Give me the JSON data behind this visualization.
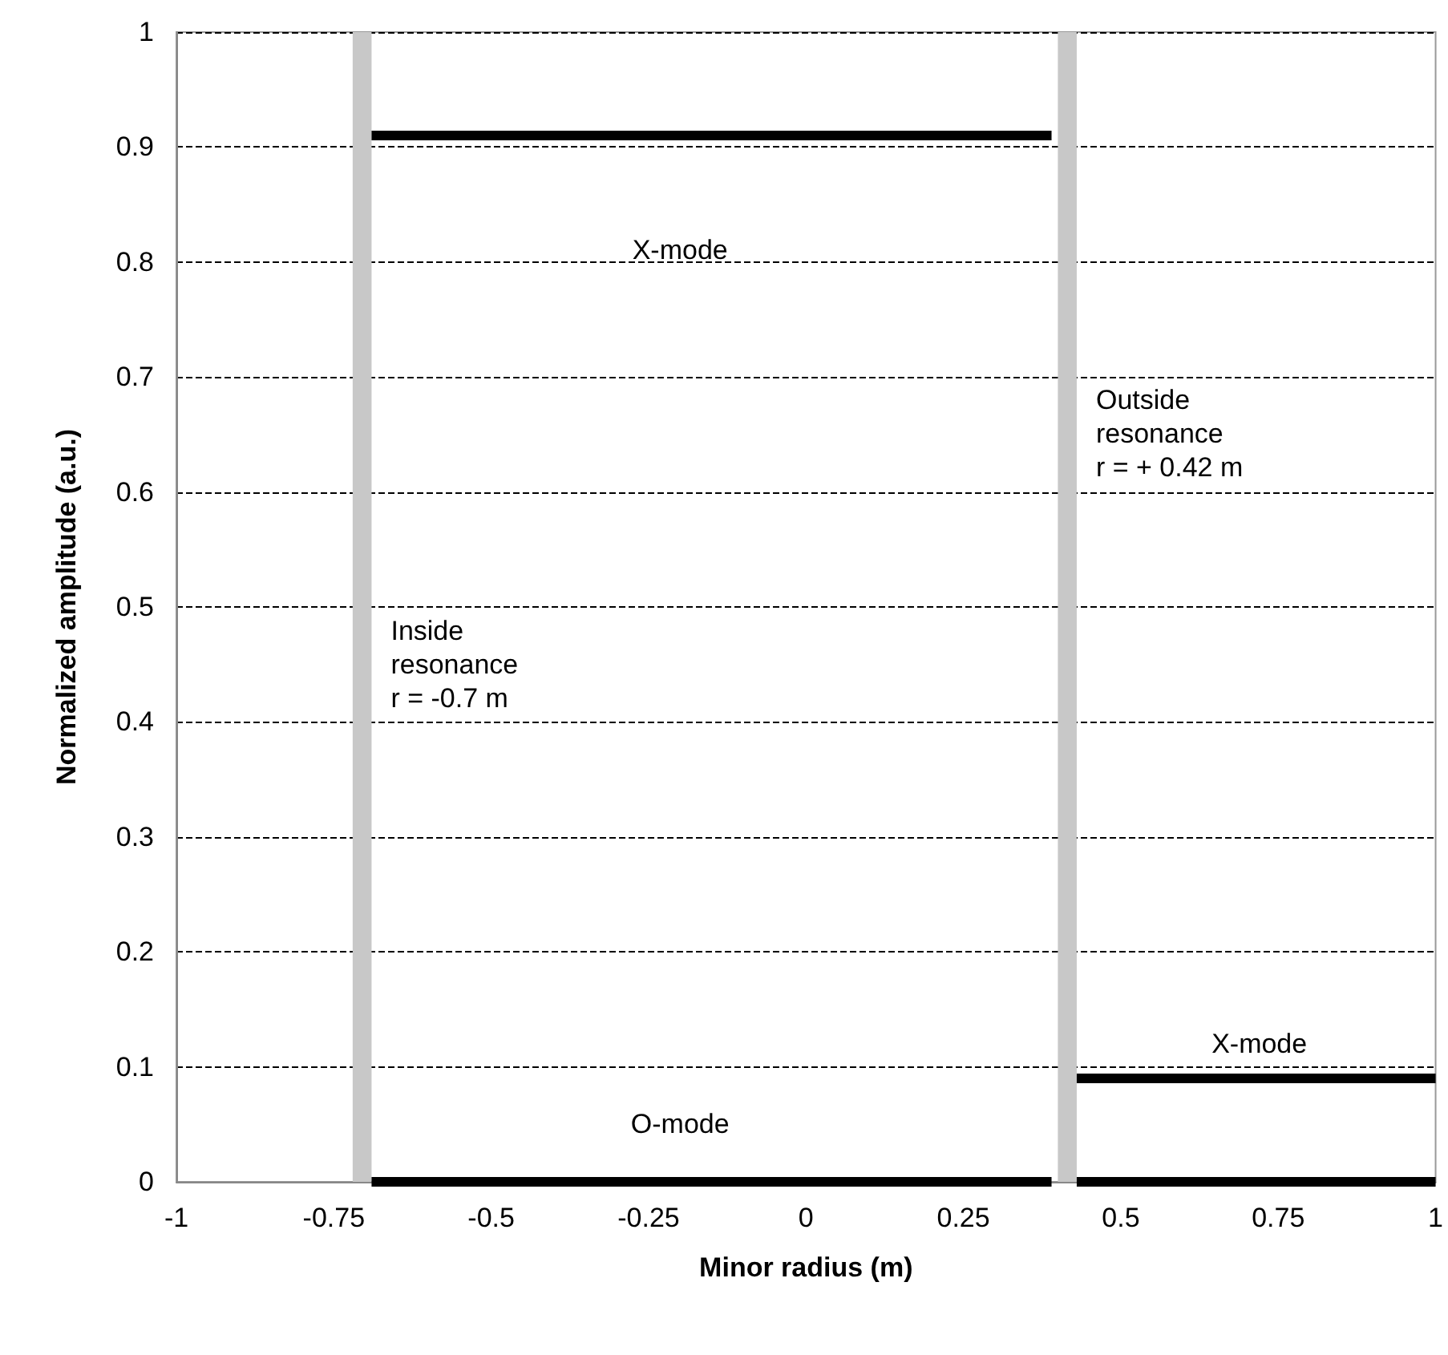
{
  "chart_data": {
    "type": "line",
    "xlabel": "Minor radius (m)",
    "ylabel": "Normalized amplitude (a.u.)",
    "xlim": [
      -1,
      1
    ],
    "xticks": [
      -1,
      -0.75,
      -0.5,
      -0.25,
      0,
      0.25,
      0.5,
      0.75,
      1
    ],
    "ylim": [
      0,
      1
    ],
    "yticks": [
      0,
      0.1,
      0.2,
      0.3,
      0.4,
      0.5,
      0.6,
      0.7,
      0.8,
      0.9,
      1
    ],
    "grid": "y",
    "marker": "none",
    "line_style": "solid",
    "series": [
      {
        "color": "#000000",
        "x": [
          -0.69,
          0.39
        ],
        "values": [
          0.91,
          0.91
        ]
      },
      {
        "color": "#000000",
        "x": [
          -0.69,
          0.39
        ],
        "values": [
          0,
          0
        ]
      },
      {
        "color": "#000000",
        "x": [
          0.43,
          1
        ],
        "values": [
          0.09,
          0.09
        ]
      },
      {
        "color": "#000000",
        "x": [
          0.43,
          1
        ],
        "values": [
          0,
          0
        ]
      }
    ],
    "bands": [
      {
        "axis": "x",
        "from": -0.72,
        "to": -0.69,
        "label": "Inside\nresonance\nr = -0.7 m",
        "color": "#c8c8c8"
      },
      {
        "axis": "x",
        "from": 0.4,
        "to": 0.43,
        "label": "Outside\nresonance\nr = + 0.42 m",
        "color": "#c8c8c8"
      }
    ],
    "annotations": [
      "X-mode",
      "O-mode",
      "X-mode"
    ]
  }
}
